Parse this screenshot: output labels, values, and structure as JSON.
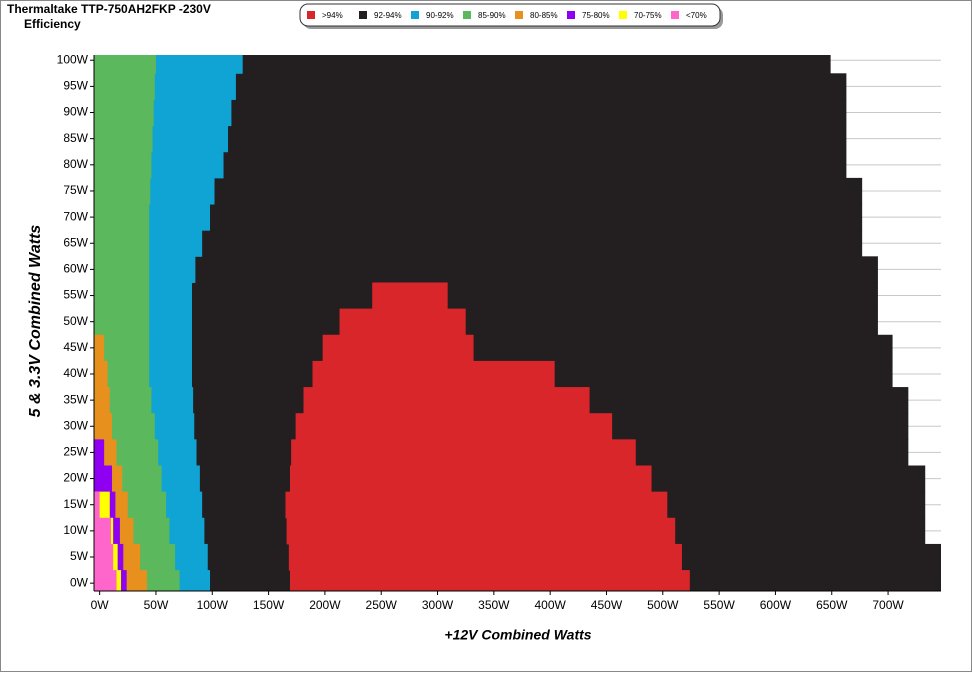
{
  "chart_data": {
    "type": "efficiency_map",
    "title": "Thermaltake TTP-750AH2FKP -230V",
    "subtitle": "Efficiency",
    "x_label": "+12V Combined Watts",
    "y_label": "5 & 3.3V Combined Watts",
    "grid": true,
    "xlim": [
      -5,
      747
    ],
    "ylim": [
      -1.5,
      101
    ],
    "xticks": [
      {
        "value": 0,
        "label": "0W"
      },
      {
        "value": 50,
        "label": "50W"
      },
      {
        "value": 100,
        "label": "100W"
      },
      {
        "value": 150,
        "label": "150W"
      },
      {
        "value": 200,
        "label": "200W"
      },
      {
        "value": 250,
        "label": "250W"
      },
      {
        "value": 300,
        "label": "300W"
      },
      {
        "value": 350,
        "label": "350W"
      },
      {
        "value": 400,
        "label": "400W"
      },
      {
        "value": 450,
        "label": "450W"
      },
      {
        "value": 500,
        "label": "500W"
      },
      {
        "value": 550,
        "label": "550W"
      },
      {
        "value": 600,
        "label": "600W"
      },
      {
        "value": 650,
        "label": "650W"
      },
      {
        "value": 700,
        "label": "700W"
      }
    ],
    "yticks": [
      {
        "value": 0,
        "label": "0W"
      },
      {
        "value": 5,
        "label": "5W"
      },
      {
        "value": 10,
        "label": "10W"
      },
      {
        "value": 15,
        "label": "15W"
      },
      {
        "value": 20,
        "label": "20W"
      },
      {
        "value": 25,
        "label": "25W"
      },
      {
        "value": 30,
        "label": "30W"
      },
      {
        "value": 35,
        "label": "35W"
      },
      {
        "value": 40,
        "label": "40W"
      },
      {
        "value": 45,
        "label": "45W"
      },
      {
        "value": 50,
        "label": "50W"
      },
      {
        "value": 55,
        "label": "55W"
      },
      {
        "value": 60,
        "label": "60W"
      },
      {
        "value": 65,
        "label": "65W"
      },
      {
        "value": 70,
        "label": "70W"
      },
      {
        "value": 75,
        "label": "75W"
      },
      {
        "value": 80,
        "label": "80W"
      },
      {
        "value": 85,
        "label": "85W"
      },
      {
        "value": 90,
        "label": "90W"
      },
      {
        "value": 95,
        "label": "95W"
      },
      {
        "value": 100,
        "label": "100W"
      }
    ],
    "y": [
      0,
      5,
      10,
      15,
      20,
      25,
      30,
      35,
      40,
      45,
      50,
      55,
      60,
      65,
      70,
      75,
      80,
      85,
      90,
      95,
      100
    ],
    "series": [
      {
        "name": ">94%",
        "color": "#d9262b",
        "start": [
          169,
          168,
          166,
          165,
          169,
          170,
          174,
          181,
          189,
          198,
          213,
          242,
          null,
          null,
          null,
          null,
          null,
          null,
          null,
          null,
          null
        ],
        "values": [
          524,
          517,
          511,
          504,
          490,
          476,
          455,
          435,
          404,
          332,
          325,
          309,
          null,
          null,
          null,
          null,
          null,
          null,
          null,
          null,
          null
        ]
      },
      {
        "name": "92-94%",
        "color": "#231f20",
        "values": [
          747,
          747,
          733,
          733,
          733,
          718,
          718,
          718,
          704,
          704,
          691,
          691,
          691,
          677,
          677,
          677,
          663,
          663,
          663,
          663,
          649
        ]
      },
      {
        "name": "90-92%",
        "color": "#0fa4d4",
        "values": [
          98,
          96,
          93,
          91,
          89,
          86,
          84,
          83,
          82,
          82,
          82,
          82,
          85,
          91,
          98,
          102,
          110,
          114,
          117,
          121,
          127
        ]
      },
      {
        "name": "85-90%",
        "color": "#5bb85c",
        "values": [
          71,
          67,
          62,
          59,
          55,
          52,
          49,
          46,
          44,
          44,
          44,
          44,
          44,
          44,
          44,
          45,
          46,
          47,
          48,
          49,
          50
        ]
      },
      {
        "name": "80-85%",
        "color": "#e8901e",
        "values": [
          42,
          36,
          30,
          25,
          20,
          15,
          11,
          9,
          7,
          4,
          null,
          null,
          null,
          null,
          null,
          null,
          null,
          null,
          null,
          null,
          null
        ]
      },
      {
        "name": "75-80%",
        "color": "#8f00f2",
        "values": [
          24,
          21,
          18,
          14,
          11,
          4,
          null,
          null,
          null,
          null,
          null,
          null,
          null,
          null,
          null,
          null,
          null,
          null,
          null,
          null,
          null
        ]
      },
      {
        "name": "70-75%",
        "color": "#ffff00",
        "values": [
          19,
          16,
          12,
          9,
          null,
          null,
          null,
          null,
          null,
          null,
          null,
          null,
          null,
          null,
          null,
          null,
          null,
          null,
          null,
          null,
          null
        ]
      },
      {
        "name": "<70%",
        "color": "#ff66cc",
        "values": [
          15,
          12,
          10,
          0,
          null,
          null,
          null,
          null,
          null,
          null,
          null,
          null,
          null,
          null,
          null,
          null,
          null,
          null,
          null,
          null,
          null
        ]
      }
    ]
  }
}
